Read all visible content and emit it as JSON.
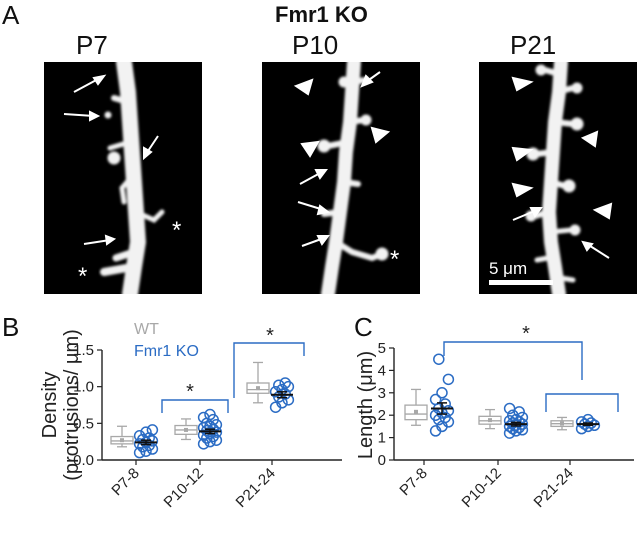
{
  "figure": {
    "panel_a_letter": "A",
    "panel_b_letter": "B",
    "panel_c_letter": "C",
    "title": "Fmr1 KO",
    "ages": [
      "P7",
      "P10",
      "P21"
    ],
    "scale_bar_label": "5 μm",
    "colors": {
      "wt": "#a8a8a8",
      "ko": "#2b6cc4",
      "axis": "#222222"
    }
  },
  "chart_data": [
    {
      "type": "box",
      "panel": "B",
      "ylabel_line1": "Density",
      "ylabel_line2": "(protrusions/ μm)",
      "categories": [
        "P7-8",
        "P10-12",
        "P21-24"
      ],
      "ylim": [
        0,
        1.5
      ],
      "yticks": [
        "0.0",
        "0.5",
        "1.0",
        "1.5"
      ],
      "legend": [
        "WT",
        "Fmr1 KO"
      ],
      "significance": "*",
      "series": [
        {
          "name": "WT",
          "boxes": [
            {
              "min": 0.18,
              "q1": 0.22,
              "median": 0.26,
              "q3": 0.32,
              "max": 0.46,
              "mean": 0.27
            },
            {
              "min": 0.28,
              "q1": 0.35,
              "median": 0.41,
              "q3": 0.47,
              "max": 0.56,
              "mean": 0.41
            },
            {
              "min": 0.78,
              "q1": 0.91,
              "median": 0.96,
              "q3": 1.05,
              "max": 1.33,
              "mean": 0.98
            }
          ]
        },
        {
          "name": "Fmr1 KO",
          "means": [
            0.24,
            0.39,
            0.89
          ],
          "sems": [
            0.03,
            0.03,
            0.04
          ],
          "points": [
            [
              0.1,
              0.12,
              0.15,
              0.18,
              0.2,
              0.22,
              0.24,
              0.26,
              0.28,
              0.3,
              0.33,
              0.38,
              0.41
            ],
            [
              0.22,
              0.25,
              0.27,
              0.3,
              0.32,
              0.34,
              0.36,
              0.38,
              0.4,
              0.42,
              0.44,
              0.46,
              0.48,
              0.5,
              0.55,
              0.58,
              0.62
            ],
            [
              0.72,
              0.78,
              0.82,
              0.86,
              0.9,
              0.93,
              0.96,
              1.0,
              1.02,
              1.05
            ]
          ]
        }
      ]
    },
    {
      "type": "box",
      "panel": "C",
      "ylabel": "Length (μm)",
      "categories": [
        "P7-8",
        "P10-12",
        "P21-24"
      ],
      "ylim": [
        0,
        5
      ],
      "yticks": [
        "0",
        "1",
        "2",
        "3",
        "4",
        "5"
      ],
      "significance": "*",
      "series": [
        {
          "name": "WT",
          "boxes": [
            {
              "min": 1.55,
              "q1": 1.8,
              "median": 2.05,
              "q3": 2.45,
              "max": 3.15,
              "mean": 2.15
            },
            {
              "min": 1.4,
              "q1": 1.6,
              "median": 1.75,
              "q3": 1.95,
              "max": 2.25,
              "mean": 1.78
            },
            {
              "min": 1.35,
              "q1": 1.5,
              "median": 1.62,
              "q3": 1.75,
              "max": 1.9,
              "mean": 1.63
            }
          ]
        },
        {
          "name": "Fmr1 KO",
          "means": [
            2.3,
            1.6,
            1.6
          ],
          "sems": [
            0.25,
            0.08,
            0.05
          ],
          "points": [
            [
              1.3,
              1.5,
              1.7,
              1.8,
              1.9,
              2.0,
              2.1,
              2.2,
              2.3,
              2.5,
              2.7,
              3.0,
              3.6,
              4.5
            ],
            [
              1.2,
              1.3,
              1.35,
              1.4,
              1.45,
              1.5,
              1.55,
              1.6,
              1.65,
              1.7,
              1.75,
              1.8,
              1.9,
              2.0,
              2.15,
              2.3
            ],
            [
              1.4,
              1.5,
              1.55,
              1.6,
              1.65,
              1.7,
              1.8
            ]
          ]
        }
      ]
    }
  ]
}
